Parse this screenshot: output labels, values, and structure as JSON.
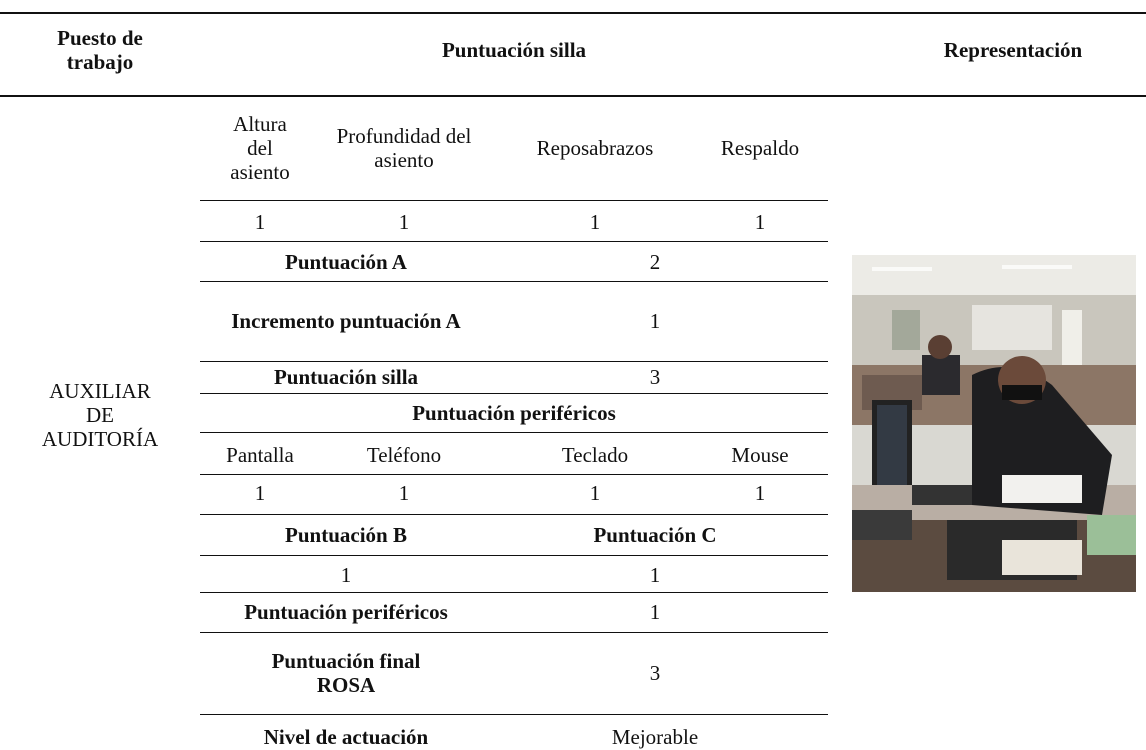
{
  "header": {
    "job": "Puesto de trabajo",
    "chair_score": "Puntuación silla",
    "representation": "Representación"
  },
  "job": "AUXILIAR DE AUDITORÍA",
  "chair_columns": [
    "Altura del asiento",
    "Profundidad del asiento",
    "Reposabrazos",
    "Respaldo"
  ],
  "chair_values": [
    1,
    1,
    1,
    1
  ],
  "score_a": {
    "label": "Puntuación A",
    "value": 2
  },
  "score_a_increment": {
    "label": "Incremento puntuación A",
    "value": 1
  },
  "chair_total": {
    "label": "Puntuación silla",
    "value": 3
  },
  "peripherals_header": "Puntuación periféricos",
  "peripheral_columns": [
    "Pantalla",
    "Teléfono",
    "Teclado",
    "Mouse"
  ],
  "peripheral_values": [
    1,
    1,
    1,
    1
  ],
  "score_b": {
    "label": "Puntuación B",
    "value": 1
  },
  "score_c": {
    "label": "Puntuación C",
    "value": 1
  },
  "peripherals_total": {
    "label": "Puntuación periféricos",
    "value": 1
  },
  "final_score": {
    "label": "Puntuación final ROSA",
    "value": 3
  },
  "action_level": {
    "label": "Nivel de actuación",
    "value": "Mejorable"
  }
}
